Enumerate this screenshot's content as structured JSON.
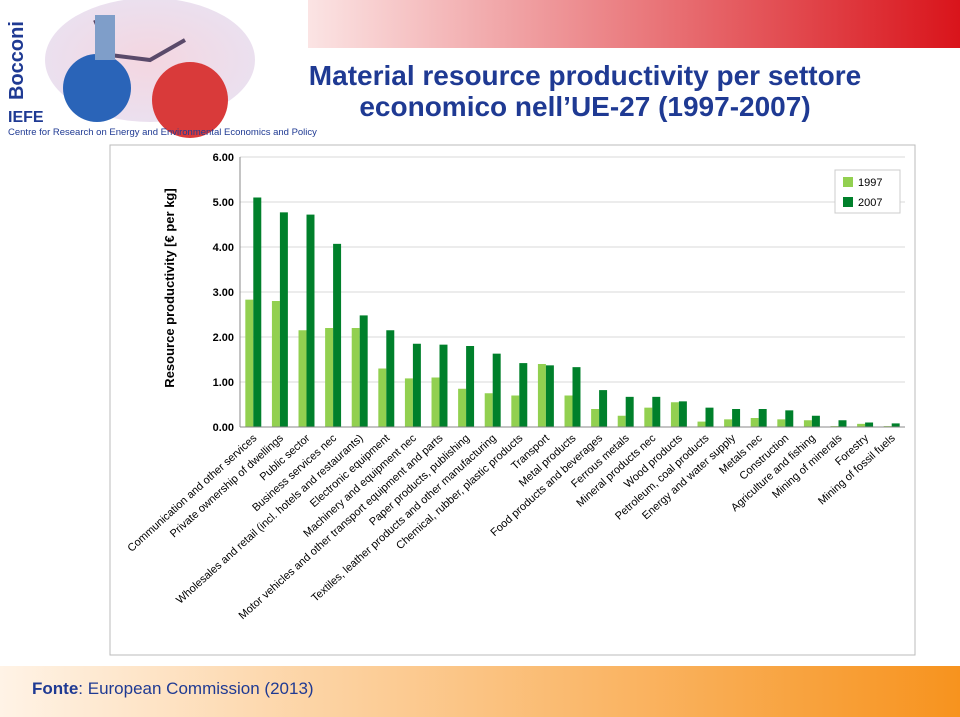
{
  "logo": {
    "university": "Bocconi",
    "institute": "IEFE",
    "centre": "Centre for Research on Energy and Environmental Economics and Policy"
  },
  "chart_data": {
    "type": "bar",
    "title": "Material resource productivity per settore economico nell’UE-27 (1997-2007)",
    "y_label": "Resource productivity [€ per kg]",
    "categories": [
      "Communication and other services",
      "Private ownership of dwellings",
      "Public sector",
      "Business services nec",
      "Wholesales and retail (incl. hotels and restaurants)",
      "Electronic equipment",
      "Machinery and equipment nec",
      "Motor vehicles and other transport equipment and parts",
      "Paper products, publishing",
      "Textiles, leather products and other manufacturing",
      "Chemical, rubber, plastic products",
      "Transport",
      "Metal products",
      "Food products and beverages",
      "Ferrous metals",
      "Mineral products nec",
      "Wood products",
      "Petroleum, coal products",
      "Energy and water supply",
      "Metals nec",
      "Construction",
      "Agriculture and fishing",
      "Mining of minerals",
      "Forestry",
      "Mining of fossil fuels"
    ],
    "series": [
      {
        "name": "1997",
        "color": "#92d050",
        "values": [
          2.83,
          2.8,
          2.15,
          2.2,
          2.2,
          1.3,
          1.08,
          1.1,
          0.85,
          0.75,
          0.7,
          1.4,
          0.7,
          0.4,
          0.25,
          0.43,
          0.55,
          0.12,
          0.17,
          0.2,
          0.17,
          0.15,
          0.02,
          0.07,
          0.02
        ]
      },
      {
        "name": "2007",
        "color": "#00802b",
        "values": [
          5.1,
          4.77,
          4.72,
          4.07,
          2.48,
          2.15,
          1.85,
          1.83,
          1.8,
          1.63,
          1.42,
          1.37,
          1.33,
          0.82,
          0.67,
          0.67,
          0.57,
          0.43,
          0.4,
          0.4,
          0.37,
          0.25,
          0.15,
          0.1,
          0.08
        ]
      }
    ],
    "ylim": [
      0,
      6
    ],
    "yticks": [
      {
        "value": 0,
        "label": "0.00"
      },
      {
        "value": 1,
        "label": "1.00"
      },
      {
        "value": 2,
        "label": "2.00"
      },
      {
        "value": 3,
        "label": "3.00"
      },
      {
        "value": 4,
        "label": "4.00"
      },
      {
        "value": 5,
        "label": "5.00"
      },
      {
        "value": 6,
        "label": "6.00"
      }
    ],
    "grid": true,
    "legend": "top-right"
  },
  "footer": {
    "label": "Fonte",
    "text": ": European Commission (2013)"
  }
}
